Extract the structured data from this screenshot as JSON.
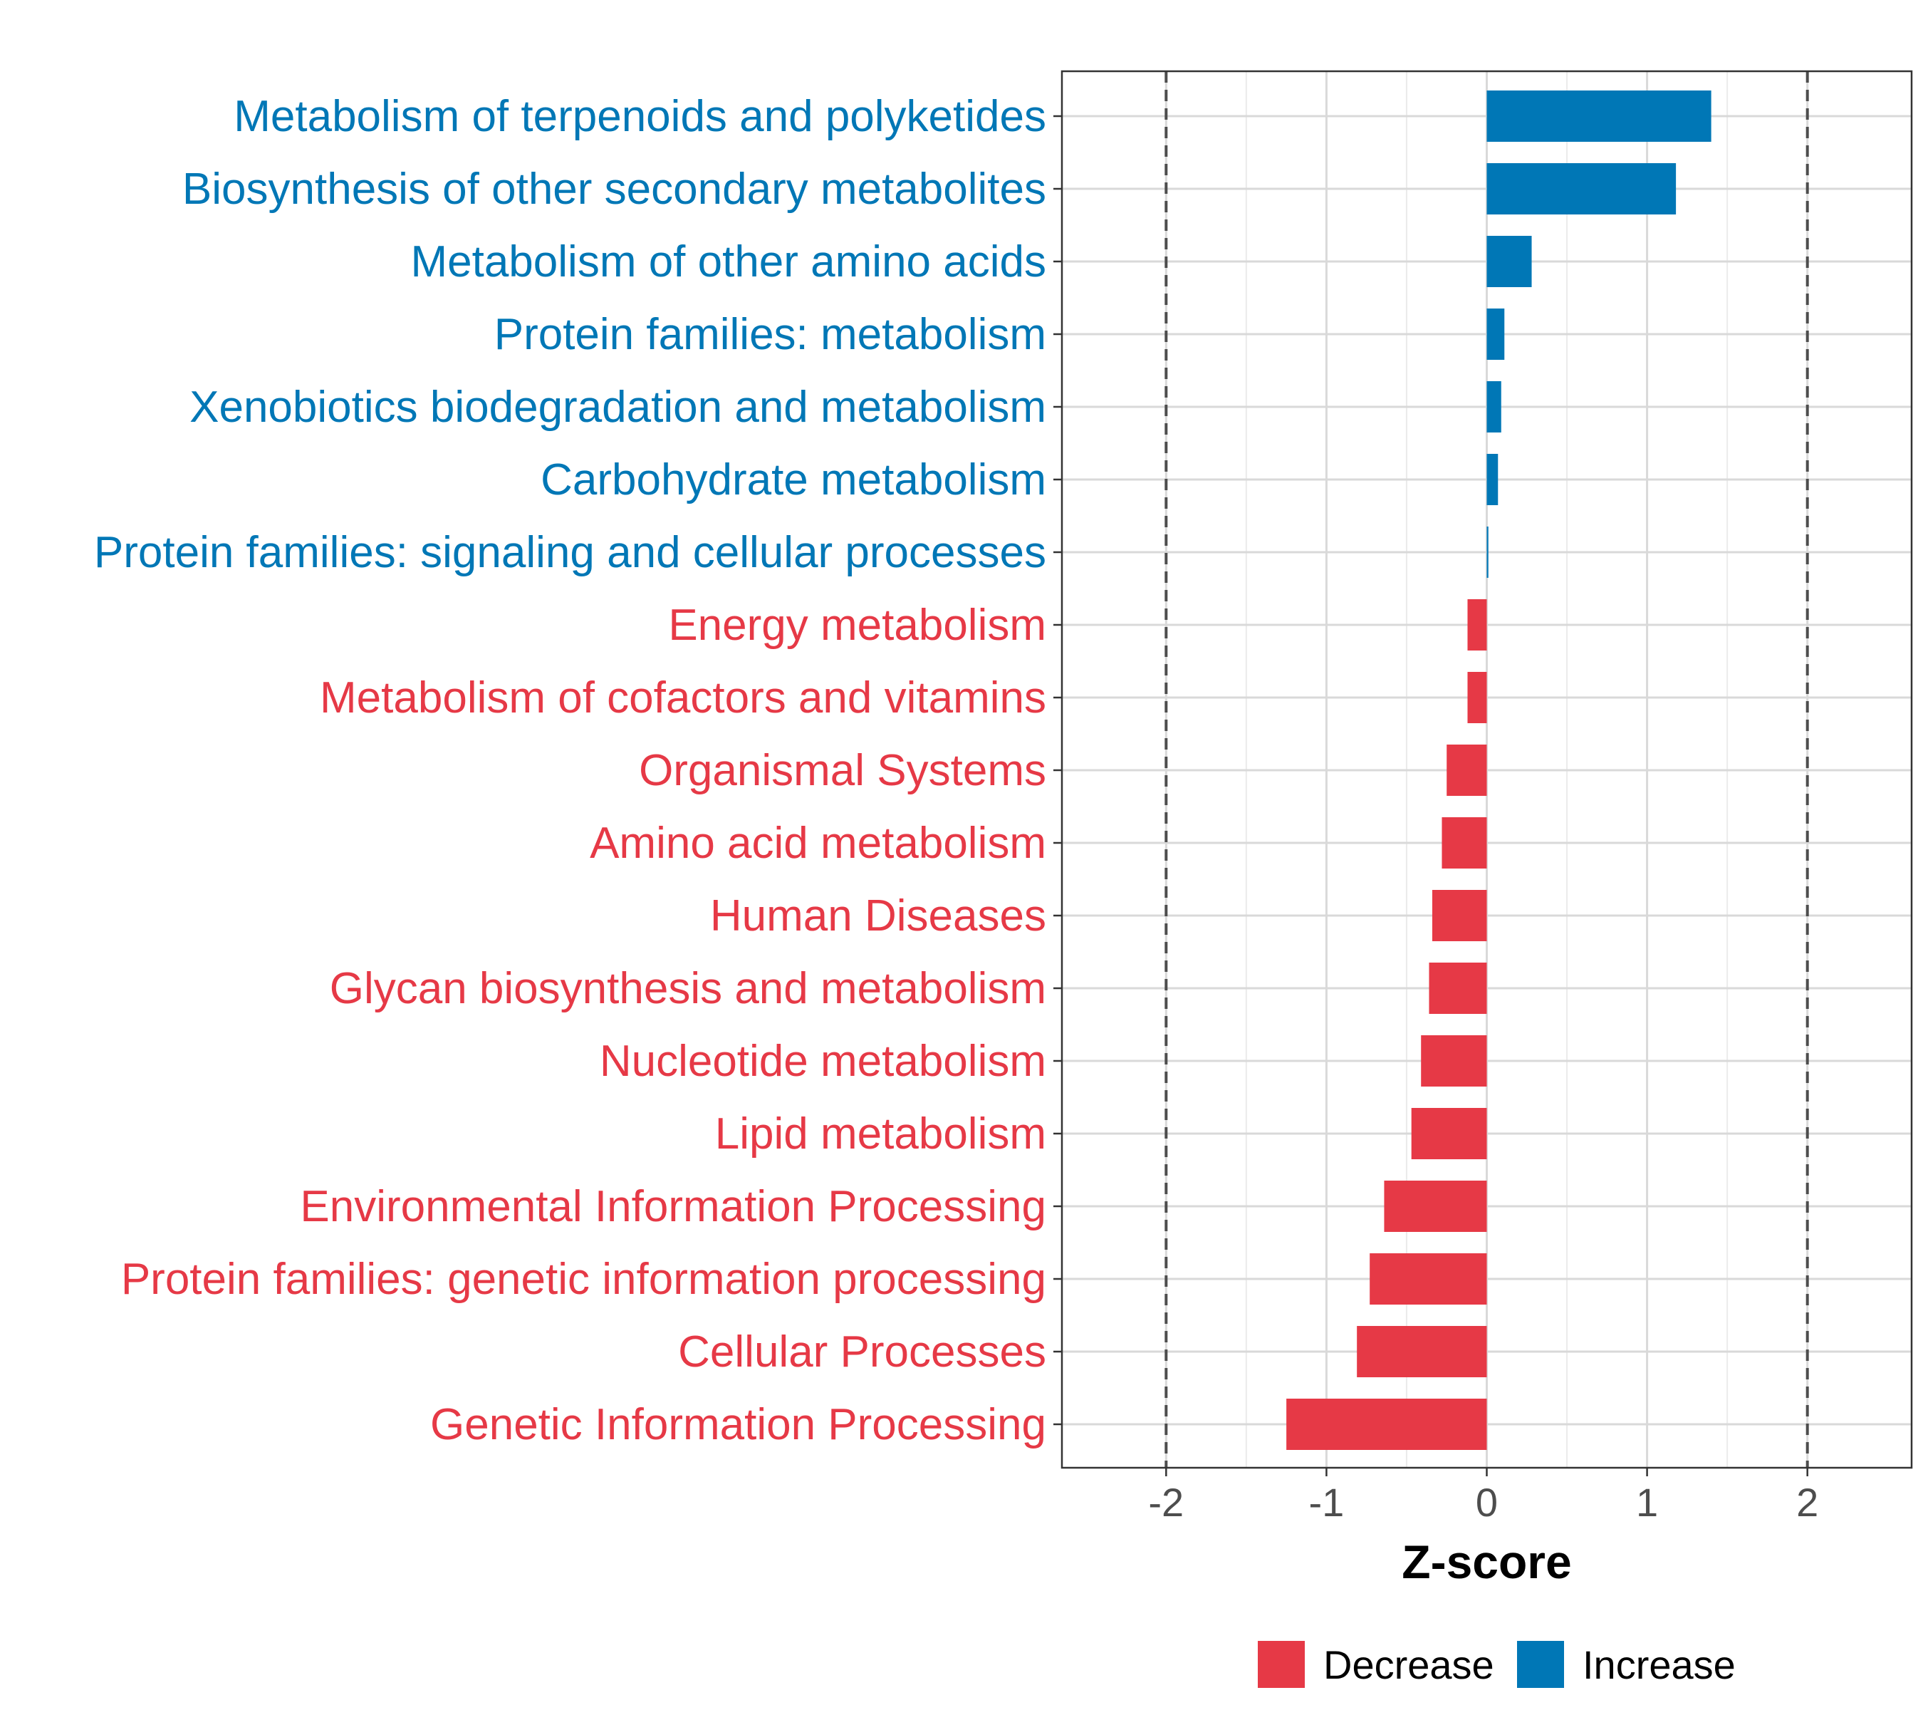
{
  "chart_data": {
    "type": "bar",
    "orientation": "horizontal",
    "title": "",
    "xlabel": "Z-score",
    "ylabel": "",
    "xlim": [
      -2.65,
      2.65
    ],
    "x_ticks": [
      -2,
      -1,
      0,
      1,
      2
    ],
    "x_tick_labels": [
      "-2",
      "-1",
      "0",
      "1",
      "2"
    ],
    "reference_lines": [
      -2,
      2
    ],
    "grid": true,
    "categories": [
      "Metabolism of terpenoids and polyketides",
      "Biosynthesis of other secondary metabolites",
      "Metabolism of other amino acids",
      "Protein families: metabolism",
      "Xenobiotics biodegradation and metabolism",
      "Carbohydrate metabolism",
      "Protein families: signaling and cellular processes",
      "Energy metabolism",
      "Metabolism of cofactors and vitamins",
      "Organismal Systems",
      "Amino acid metabolism",
      "Human Diseases",
      "Glycan biosynthesis and metabolism",
      "Nucleotide metabolism",
      "Lipid metabolism",
      "Environmental Information Processing",
      "Protein families: genetic information processing",
      "Cellular Processes",
      "Genetic Information Processing"
    ],
    "values": [
      1.4,
      1.18,
      0.28,
      0.11,
      0.09,
      0.07,
      0.01,
      -0.12,
      -0.12,
      -0.25,
      -0.28,
      -0.34,
      -0.36,
      -0.41,
      -0.47,
      -0.64,
      -0.73,
      -0.81,
      -1.25
    ],
    "colors": {
      "Decrease": "#E63946",
      "Increase": "#0077B6"
    },
    "legend": {
      "position": "bottom",
      "entries": [
        "Decrease",
        "Increase"
      ]
    }
  }
}
